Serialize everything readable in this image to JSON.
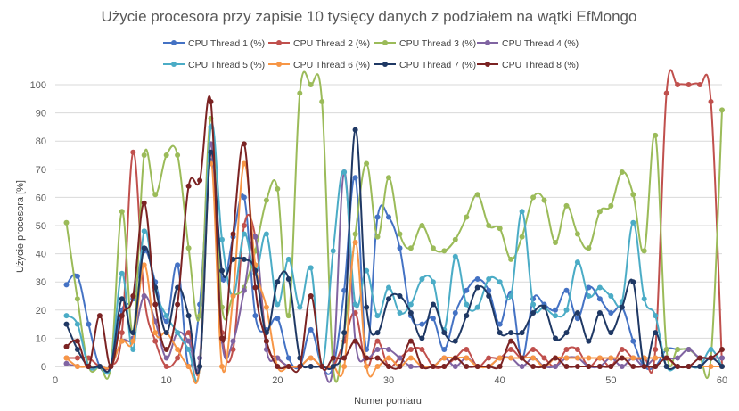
{
  "chart_data": {
    "type": "line",
    "title": "Użycie procesora przy zapisie 10 tysięcy danych z podziałem na wątki  EfMongo",
    "xlabel": "Numer pomiaru",
    "ylabel": "Użycie procesora [%]",
    "xlim": [
      0,
      60
    ],
    "ylim": [
      0,
      100
    ],
    "xticks": [
      0,
      10,
      20,
      30,
      40,
      50,
      60
    ],
    "yticks": [
      0,
      10,
      20,
      30,
      40,
      50,
      60,
      70,
      80,
      90,
      100
    ],
    "grid": "horizontal",
    "legend_position": "top",
    "x": [
      1,
      2,
      3,
      4,
      5,
      6,
      7,
      8,
      9,
      10,
      11,
      12,
      13,
      14,
      15,
      16,
      17,
      18,
      19,
      20,
      21,
      22,
      23,
      24,
      25,
      26,
      27,
      28,
      29,
      30,
      31,
      32,
      33,
      34,
      35,
      36,
      37,
      38,
      39,
      40,
      41,
      42,
      43,
      44,
      45,
      46,
      47,
      48,
      49,
      50,
      51,
      52,
      53,
      54,
      55,
      56,
      57,
      58,
      59,
      60
    ],
    "series": [
      {
        "name": "CPU Thread 1 (%)",
        "color": "#4472C4",
        "values": [
          29,
          32,
          15,
          0,
          0,
          20,
          24,
          41,
          30,
          16,
          36,
          0,
          22,
          73,
          31,
          46,
          60,
          18,
          13,
          17,
          3,
          0,
          13,
          0,
          0,
          27,
          67,
          6,
          53,
          53,
          42,
          18,
          15,
          17,
          6,
          19,
          27,
          31,
          27,
          15,
          26,
          3,
          24,
          22,
          20,
          27,
          17,
          28,
          24,
          19,
          21,
          9,
          0,
          0,
          6,
          6,
          6,
          3,
          3,
          3
        ]
      },
      {
        "name": "CPU Thread 2 (%)",
        "color": "#C0504D",
        "values": [
          3,
          3,
          3,
          0,
          0,
          12,
          76,
          25,
          9,
          0,
          3,
          12,
          0,
          76,
          12,
          6,
          50,
          46,
          9,
          3,
          0,
          0,
          0,
          0,
          0,
          9,
          19,
          0,
          9,
          0,
          3,
          6,
          6,
          0,
          0,
          3,
          6,
          0,
          3,
          3,
          6,
          3,
          6,
          3,
          0,
          6,
          6,
          0,
          3,
          0,
          6,
          3,
          3,
          6,
          97,
          100,
          100,
          100,
          94,
          0
        ]
      },
      {
        "name": "CPU Thread 3 (%)",
        "color": "#9BBB59",
        "values": [
          51,
          24,
          0,
          0,
          0,
          55,
          12,
          75,
          61,
          75,
          75,
          42,
          18,
          88,
          21,
          25,
          28,
          41,
          59,
          63,
          18,
          97,
          100,
          94,
          0,
          12,
          47,
          72,
          46,
          67,
          47,
          42,
          50,
          42,
          41,
          45,
          53,
          61,
          50,
          49,
          38,
          46,
          60,
          59,
          44,
          57,
          47,
          42,
          55,
          57,
          69,
          61,
          41,
          82,
          6,
          6,
          6,
          3,
          3,
          91
        ]
      },
      {
        "name": "CPU Thread 4 (%)",
        "color": "#8064A2",
        "values": [
          1,
          0,
          0,
          0,
          0,
          9,
          10,
          25,
          16,
          3,
          12,
          9,
          3,
          79,
          9,
          9,
          27,
          46,
          6,
          3,
          0,
          0,
          3,
          0,
          0,
          69,
          9,
          3,
          6,
          6,
          3,
          0,
          0,
          0,
          3,
          0,
          3,
          0,
          0,
          3,
          3,
          0,
          3,
          0,
          0,
          3,
          3,
          0,
          0,
          3,
          0,
          3,
          0,
          3,
          3,
          3,
          6,
          3,
          3,
          3
        ]
      },
      {
        "name": "CPU Thread 5 (%)",
        "color": "#4BACC6",
        "values": [
          18,
          15,
          0,
          0,
          0,
          33,
          6,
          48,
          27,
          18,
          12,
          6,
          0,
          85,
          45,
          25,
          47,
          33,
          47,
          22,
          38,
          21,
          35,
          0,
          41,
          69,
          22,
          34,
          18,
          28,
          19,
          22,
          31,
          30,
          13,
          39,
          22,
          21,
          31,
          30,
          25,
          55,
          22,
          21,
          18,
          20,
          37,
          25,
          28,
          25,
          23,
          51,
          24,
          18,
          0,
          0,
          0,
          0,
          6,
          0
        ]
      },
      {
        "name": "CPU Thread 6 (%)",
        "color": "#F79646",
        "values": [
          3,
          0,
          0,
          0,
          0,
          9,
          9,
          36,
          12,
          12,
          6,
          0,
          0,
          72,
          0,
          25,
          72,
          36,
          21,
          0,
          0,
          0,
          3,
          0,
          0,
          0,
          44,
          0,
          0,
          3,
          0,
          3,
          0,
          0,
          3,
          3,
          3,
          0,
          0,
          3,
          3,
          3,
          3,
          0,
          3,
          3,
          3,
          3,
          3,
          3,
          3,
          3,
          3,
          3,
          3,
          0,
          0,
          0,
          0,
          0
        ]
      },
      {
        "name": "CPU Thread 7 (%)",
        "color": "#1F3864",
        "values": [
          15,
          6,
          0,
          0,
          0,
          24,
          12,
          42,
          28,
          12,
          28,
          18,
          0,
          76,
          34,
          38,
          38,
          34,
          12,
          30,
          31,
          3,
          0,
          0,
          0,
          12,
          84,
          21,
          12,
          24,
          25,
          19,
          10,
          22,
          12,
          9,
          18,
          28,
          25,
          12,
          12,
          12,
          19,
          21,
          10,
          12,
          19,
          9,
          19,
          12,
          21,
          30,
          0,
          12,
          0,
          0,
          0,
          0,
          3,
          0
        ]
      },
      {
        "name": "CPU Thread 8 (%)",
        "color": "#7B2323",
        "values": [
          7,
          9,
          0,
          18,
          0,
          18,
          25,
          58,
          22,
          6,
          22,
          64,
          66,
          94,
          10,
          47,
          79,
          28,
          9,
          0,
          0,
          0,
          25,
          0,
          3,
          3,
          9,
          3,
          3,
          0,
          0,
          9,
          0,
          0,
          0,
          3,
          0,
          0,
          0,
          0,
          9,
          3,
          0,
          0,
          3,
          0,
          0,
          0,
          0,
          0,
          3,
          0,
          0,
          0,
          3,
          0,
          0,
          3,
          3,
          6
        ]
      }
    ]
  }
}
